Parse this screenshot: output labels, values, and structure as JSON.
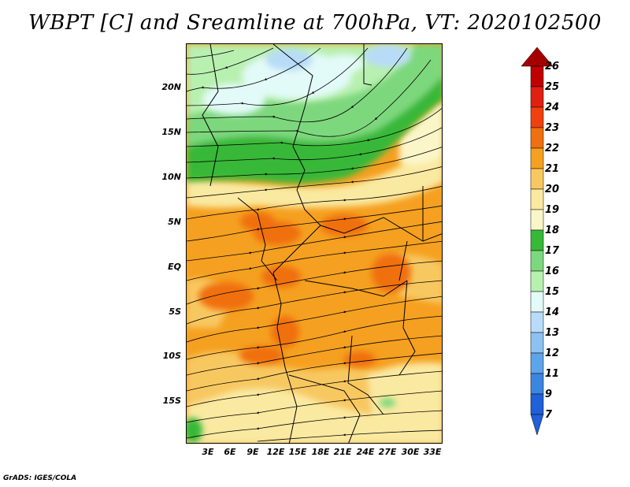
{
  "title": "WBPT [C] and Sreamline at 700hPa, VT: 2020102500",
  "footer": "GrADS: IGES/COLA",
  "map": {
    "variable": "Wet-bulb potential temperature",
    "units": "C",
    "level": "700hPa",
    "valid_time": "2020102500",
    "lat_labels": [
      "20N",
      "15N",
      "10N",
      "5N",
      "EQ",
      "5S",
      "10S",
      "15S"
    ],
    "lon_labels": [
      "3E",
      "6E",
      "9E",
      "12E",
      "15E",
      "18E",
      "21E",
      "24E",
      "27E",
      "30E",
      "33E"
    ]
  },
  "colorbar": {
    "labels": [
      "26",
      "25",
      "24",
      "23",
      "22",
      "21",
      "20",
      "19",
      "18",
      "17",
      "16",
      "15",
      "14",
      "13",
      "12",
      "11",
      "9",
      "7"
    ],
    "colors": {
      "top_triangle": "#a50000",
      "c25": "#c00000",
      "c24": "#e02010",
      "c23": "#f04010",
      "c22": "#f07010",
      "c21": "#f5a020",
      "c20": "#f8c860",
      "c19": "#fae9a0",
      "c18": "#fbf6c8",
      "c17": "#38b838",
      "c16": "#7dd87d",
      "c15": "#b8f0b0",
      "c14": "#e2faf8",
      "c13": "#b8dcf8",
      "c12": "#8cc2f2",
      "c11": "#5ea4ea",
      "c9": "#3c86e2",
      "c7": "#2060d8",
      "bottom_triangle": "#2060d8"
    }
  }
}
